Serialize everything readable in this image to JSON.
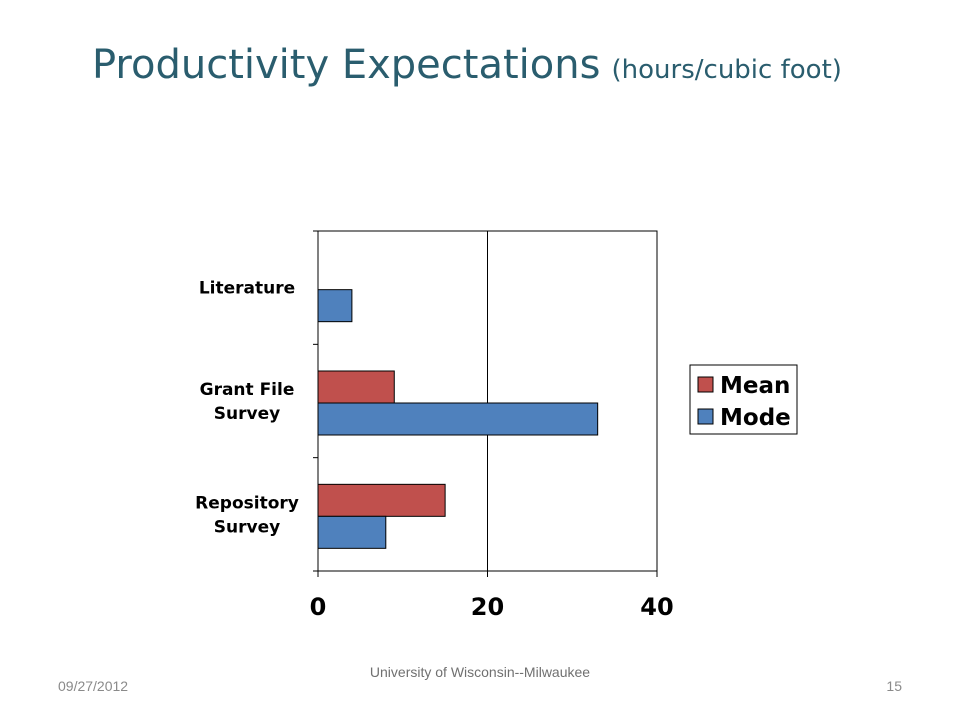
{
  "slide": {
    "title": "Productivity Expectations",
    "title_suffix": "(hours/cubic foot)",
    "date": "09/27/2012",
    "footer": "University of Wisconsin--Milwaukee",
    "page_number": "15"
  },
  "chart_data": {
    "type": "bar",
    "orientation": "horizontal",
    "title": "",
    "xlabel": "",
    "ylabel": "",
    "categories": [
      {
        "lines": [
          "Literature"
        ]
      },
      {
        "lines": [
          "Grant File",
          "Survey"
        ]
      },
      {
        "lines": [
          "Repository",
          "Survey"
        ]
      }
    ],
    "series": [
      {
        "name": "Mean",
        "color": "#c0504d",
        "values": [
          null,
          9,
          15
        ]
      },
      {
        "name": "Mode",
        "color": "#4f81bd",
        "values": [
          4,
          33,
          8
        ]
      }
    ],
    "xlim": [
      0,
      40
    ],
    "xticks": [
      "0",
      "20",
      "40"
    ],
    "grid": "vertical",
    "legend": "right"
  }
}
